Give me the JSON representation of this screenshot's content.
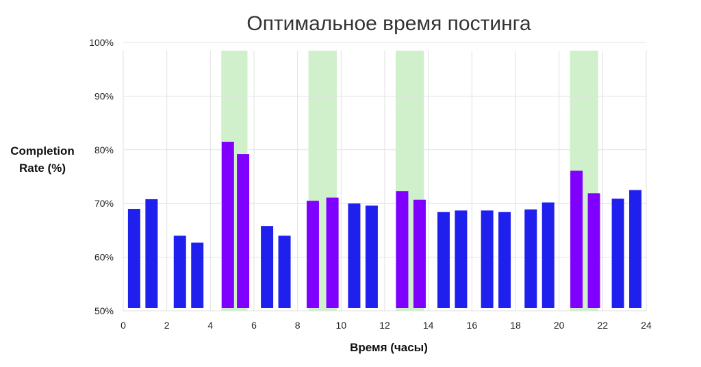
{
  "chart_data": {
    "type": "bar",
    "title": "Оптимальное время постинга",
    "xlabel": "Время (часы)",
    "ylabel_lines": [
      "Completion",
      "Rate (%)"
    ],
    "ylim": [
      50,
      100
    ],
    "xlim": [
      0,
      24
    ],
    "x_ticks": [
      "0",
      "2",
      "4",
      "6",
      "8",
      "10",
      "12",
      "14",
      "16",
      "18",
      "20",
      "22",
      "24"
    ],
    "y_ticks": [
      {
        "value": 50,
        "label": "50%"
      },
      {
        "value": 60,
        "label": "60%"
      },
      {
        "value": 70,
        "label": "70%"
      },
      {
        "value": 80,
        "label": "80%"
      },
      {
        "value": 90,
        "label": "90%"
      },
      {
        "value": 100,
        "label": "100%"
      }
    ],
    "grid": true,
    "highlight_windows": [
      [
        4.5,
        5.7
      ],
      [
        8.5,
        9.8
      ],
      [
        12.5,
        13.8
      ],
      [
        20.5,
        21.8
      ]
    ],
    "bars": [
      {
        "x": 0.5,
        "value": 69.0,
        "highlight": false
      },
      {
        "x": 1.3,
        "value": 70.8,
        "highlight": false
      },
      {
        "x": 2.6,
        "value": 64.0,
        "highlight": false
      },
      {
        "x": 3.4,
        "value": 62.7,
        "highlight": false
      },
      {
        "x": 4.8,
        "value": 81.5,
        "highlight": true
      },
      {
        "x": 5.5,
        "value": 79.2,
        "highlight": true
      },
      {
        "x": 6.6,
        "value": 65.8,
        "highlight": false
      },
      {
        "x": 7.4,
        "value": 64.0,
        "highlight": false
      },
      {
        "x": 8.7,
        "value": 70.5,
        "highlight": true
      },
      {
        "x": 9.6,
        "value": 71.1,
        "highlight": true
      },
      {
        "x": 10.6,
        "value": 70.0,
        "highlight": false
      },
      {
        "x": 11.4,
        "value": 69.6,
        "highlight": false
      },
      {
        "x": 12.8,
        "value": 72.3,
        "highlight": true
      },
      {
        "x": 13.6,
        "value": 70.7,
        "highlight": true
      },
      {
        "x": 14.7,
        "value": 68.4,
        "highlight": false
      },
      {
        "x": 15.5,
        "value": 68.7,
        "highlight": false
      },
      {
        "x": 16.7,
        "value": 68.7,
        "highlight": false
      },
      {
        "x": 17.5,
        "value": 68.4,
        "highlight": false
      },
      {
        "x": 18.7,
        "value": 68.9,
        "highlight": false
      },
      {
        "x": 19.5,
        "value": 70.2,
        "highlight": false
      },
      {
        "x": 20.8,
        "value": 76.1,
        "highlight": true
      },
      {
        "x": 21.6,
        "value": 71.9,
        "highlight": true
      },
      {
        "x": 22.7,
        "value": 70.9,
        "highlight": false
      },
      {
        "x": 23.5,
        "value": 72.5,
        "highlight": false
      }
    ],
    "colors": {
      "bar": "#2020ee",
      "bar_highlight": "#7f00ff",
      "window": "#d0f0cc",
      "grid": "#e2e2e2"
    }
  }
}
